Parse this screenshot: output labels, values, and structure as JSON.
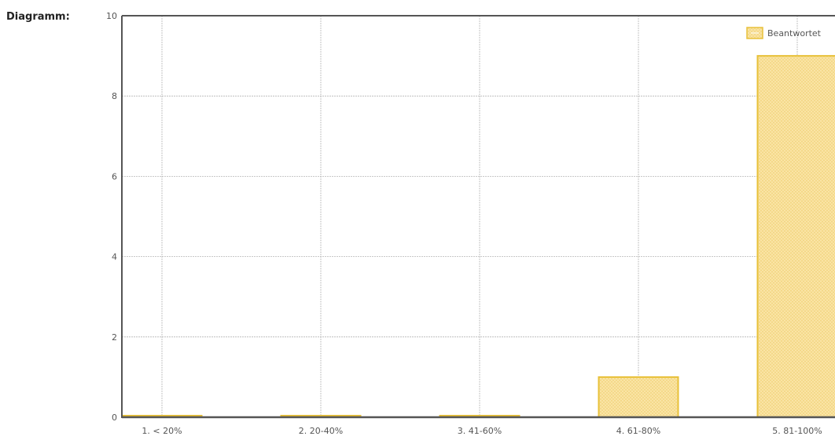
{
  "section_label": "Diagramm:",
  "colors": {
    "bar_fill": "#fbe6a8",
    "bar_border": "#e8c13a",
    "hatch": "#f0d27a",
    "axis": "#555555",
    "grid": "#b5b5b5"
  },
  "chart_data": {
    "type": "bar",
    "categories": [
      "1. < 20%",
      "2. 20-40%",
      "3. 41-60%",
      "4. 61-80%",
      "5. 81-100%"
    ],
    "series": [
      {
        "name": "Beantwortet",
        "values": [
          0,
          0,
          0,
          1,
          9
        ]
      }
    ],
    "ylim": [
      0,
      10
    ],
    "yticks": [
      0,
      2,
      4,
      6,
      8,
      10
    ],
    "grid": true,
    "legend_position": "top-right"
  }
}
